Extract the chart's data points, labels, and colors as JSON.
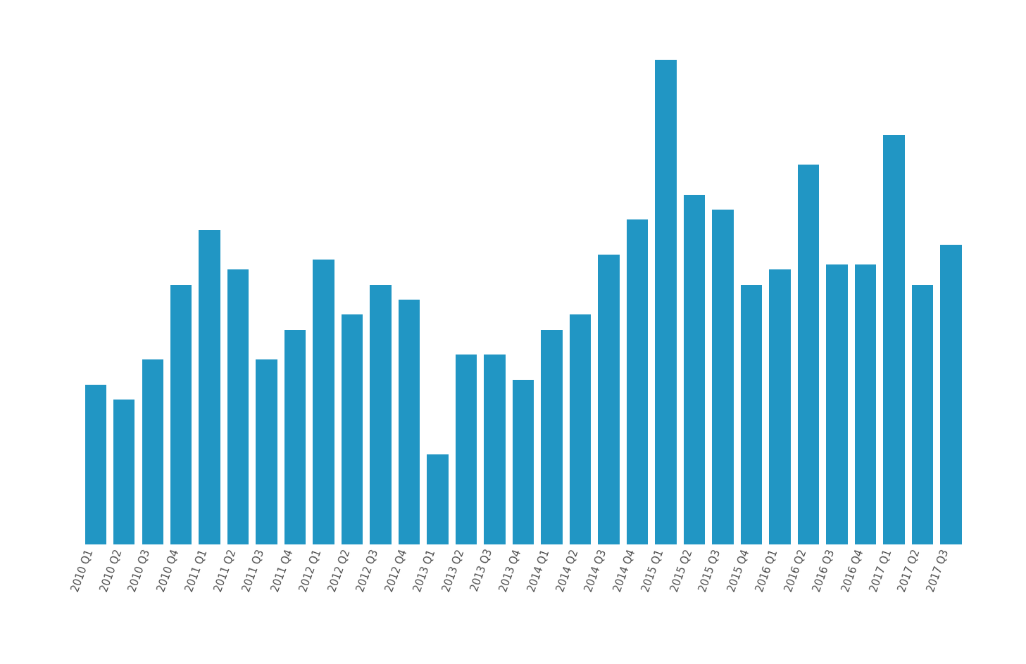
{
  "categories": [
    "2010 Q1",
    "2010 Q2",
    "2010 Q3",
    "2010 Q4",
    "2011 Q1",
    "2011 Q2",
    "2011 Q3",
    "2011 Q4",
    "2012 Q1",
    "2012 Q2",
    "2012 Q3",
    "2012 Q4",
    "2013 Q1",
    "2013 Q2",
    "2013 Q3",
    "2013 Q4",
    "2014 Q1",
    "2014 Q2",
    "2014 Q3",
    "2014 Q4",
    "2015 Q1",
    "2015 Q2",
    "2015 Q3",
    "2015 Q4",
    "2016 Q1",
    "2016 Q2",
    "2016 Q3",
    "2016 Q4",
    "2017 Q1",
    "2017 Q2",
    "2017 Q3"
  ],
  "values": [
    32,
    29,
    37,
    52,
    63,
    55,
    37,
    43,
    57,
    46,
    52,
    49,
    18,
    38,
    38,
    33,
    43,
    46,
    58,
    65,
    97,
    70,
    67,
    52,
    55,
    76,
    56,
    56,
    82,
    52,
    60
  ],
  "bar_color": "#2196C4",
  "background_color": "#ffffff",
  "ylim_max": 105,
  "bar_width": 0.75,
  "tick_fontsize": 10.5,
  "tick_color": "#4a4a4a"
}
